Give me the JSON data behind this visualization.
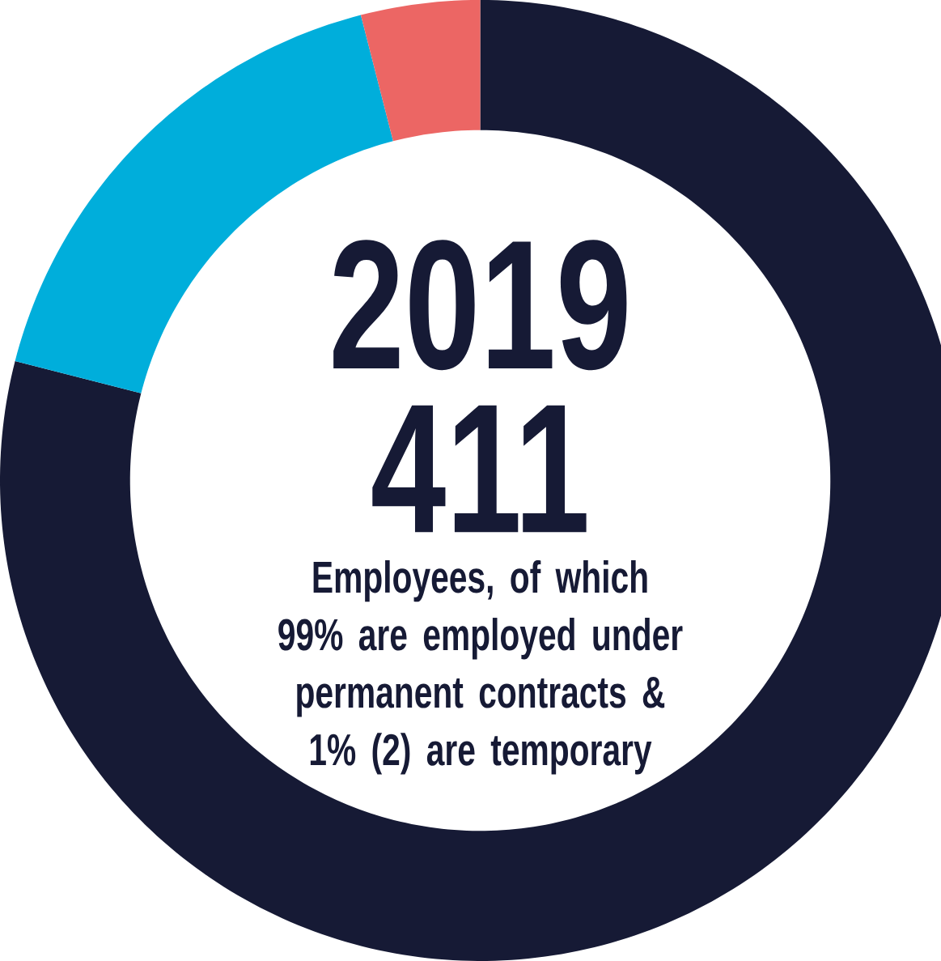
{
  "chart_data": {
    "type": "donut",
    "title": "2019",
    "categories": [
      null,
      null,
      null
    ],
    "values": [
      79,
      17,
      4
    ],
    "colors": [
      "#161a35",
      "#00aedb",
      "#ec6664"
    ],
    "annotations": [
      "411",
      "Employees, of which 99% are employed under permanent contracts & 1% (2) are temporary"
    ]
  }
}
